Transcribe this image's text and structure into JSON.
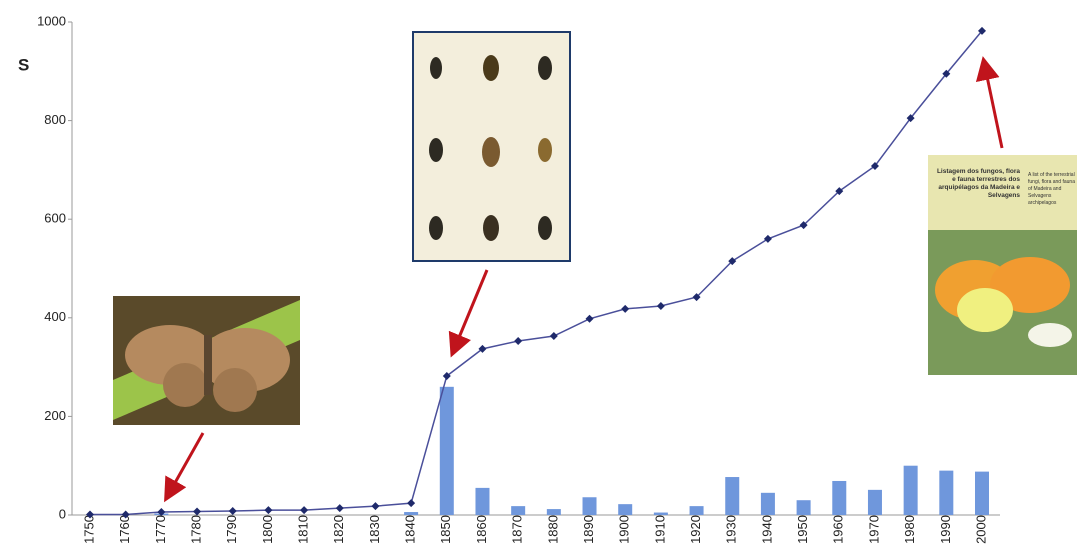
{
  "chart_data": {
    "type": "combo",
    "y_label": "S",
    "categories": [
      "1750",
      "1760",
      "1770",
      "1780",
      "1790",
      "1800",
      "1810",
      "1820",
      "1830",
      "1840",
      "1850",
      "1860",
      "1870",
      "1880",
      "1890",
      "1900",
      "1910",
      "1920",
      "1930",
      "1940",
      "1950",
      "1960",
      "1970",
      "1980",
      "1990",
      "2000"
    ],
    "series": [
      {
        "type": "bar",
        "color": "#6f97dc",
        "values": [
          0,
          0,
          3,
          0,
          0,
          0,
          0,
          0,
          0,
          6,
          260,
          55,
          18,
          12,
          36,
          22,
          5,
          18,
          77,
          45,
          30,
          69,
          51,
          100,
          90,
          88
        ]
      },
      {
        "type": "line",
        "color": "#4a4f9a",
        "marker_color": "#1f2a6b",
        "values": [
          1,
          1,
          6,
          7,
          8,
          10,
          10,
          14,
          18,
          24,
          282,
          337,
          353,
          363,
          398,
          418,
          424,
          442,
          515,
          560,
          588,
          657,
          708,
          805,
          895,
          982
        ]
      }
    ],
    "ylim": [
      0,
      1000
    ],
    "yticks": [
      0,
      200,
      400,
      600,
      800,
      1000
    ],
    "grid": false,
    "annotations": {
      "book_title_pt": "Listagem dos fungos, flora e fauna terrestres dos arquipélagos da Madeira e Selvagens",
      "book_title_en": "A list of the terrestrial fungi, flora and fauna of Madeira and Selvagens archipelagos"
    }
  }
}
